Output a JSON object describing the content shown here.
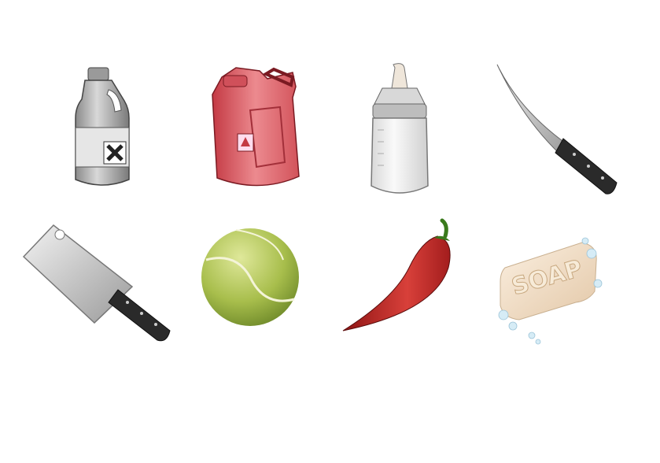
{
  "soap": {
    "label": "SOAP"
  }
}
